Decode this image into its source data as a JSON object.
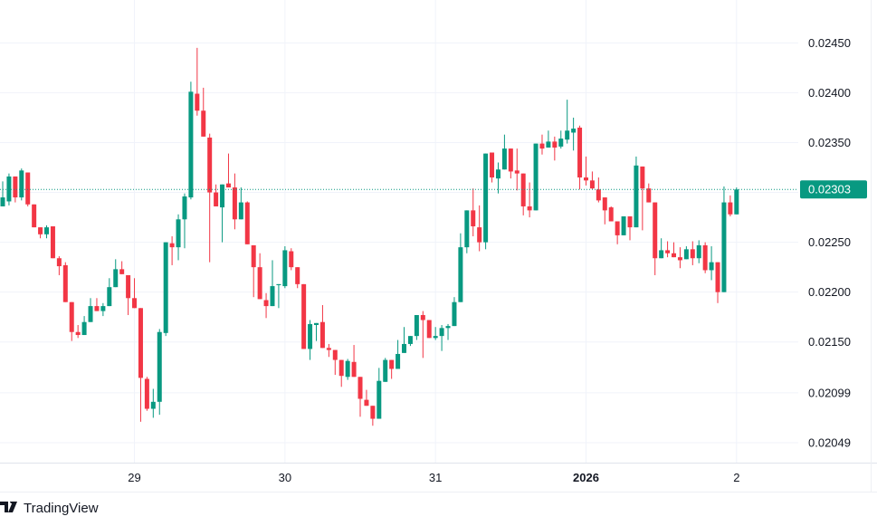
{
  "chart_data": {
    "type": "candlestick",
    "y_ticks": [
      "0.02450",
      "0.02400",
      "0.02350",
      "0.02250",
      "0.02200",
      "0.02150",
      "0.02099",
      "0.02049"
    ],
    "y_tick_values": [
      0.0245,
      0.024,
      0.0235,
      0.0225,
      0.022,
      0.0215,
      0.02099,
      0.02049
    ],
    "ylim": [
      0.02029,
      0.02493
    ],
    "x_ticks": [
      {
        "label": "29",
        "index": 21,
        "bold": false
      },
      {
        "label": "30",
        "index": 45,
        "bold": false
      },
      {
        "label": "31",
        "index": 69,
        "bold": false
      },
      {
        "label": "2026",
        "index": 93,
        "bold": true
      },
      {
        "label": "2",
        "index": 117,
        "bold": false
      }
    ],
    "current_price": {
      "label": "0.02303",
      "value": 0.02303
    },
    "grid": true,
    "colors": {
      "up": "#089981",
      "down": "#F23645",
      "grid": "#f0f3fa",
      "price_line": "#089981"
    },
    "ohlc_columns": [
      "open",
      "high",
      "low",
      "close"
    ],
    "candles": [
      [
        0.02286,
        0.02311,
        0.02286,
        0.02295
      ],
      [
        0.02291,
        0.02319,
        0.02287,
        0.02316
      ],
      [
        0.02316,
        0.02316,
        0.0229,
        0.02295
      ],
      [
        0.02295,
        0.02324,
        0.02292,
        0.02322
      ],
      [
        0.0232,
        0.0232,
        0.02286,
        0.02288
      ],
      [
        0.02288,
        0.02288,
        0.02265,
        0.02265
      ],
      [
        0.02265,
        0.02265,
        0.02254,
        0.02258
      ],
      [
        0.02258,
        0.02267,
        0.02254,
        0.02265
      ],
      [
        0.02266,
        0.02266,
        0.02234,
        0.02234
      ],
      [
        0.02234,
        0.02236,
        0.02217,
        0.02226
      ],
      [
        0.02227,
        0.0223,
        0.0219,
        0.0219
      ],
      [
        0.0219,
        0.0219,
        0.02151,
        0.0216
      ],
      [
        0.0216,
        0.02167,
        0.02154,
        0.02157
      ],
      [
        0.02157,
        0.02176,
        0.02157,
        0.0217
      ],
      [
        0.0217,
        0.02194,
        0.0217,
        0.02186
      ],
      [
        0.02186,
        0.02194,
        0.02181,
        0.02181
      ],
      [
        0.02181,
        0.02189,
        0.02176,
        0.02186
      ],
      [
        0.02186,
        0.02214,
        0.02186,
        0.02205
      ],
      [
        0.02205,
        0.02233,
        0.02205,
        0.02223
      ],
      [
        0.02223,
        0.02231,
        0.02218,
        0.02218
      ],
      [
        0.02217,
        0.02217,
        0.02177,
        0.02194
      ],
      [
        0.02194,
        0.02214,
        0.02184,
        0.02184
      ],
      [
        0.02184,
        0.02184,
        0.0207,
        0.02114
      ],
      [
        0.02113,
        0.02115,
        0.02081,
        0.02083
      ],
      [
        0.02083,
        0.02103,
        0.02074,
        0.0209
      ],
      [
        0.0209,
        0.02163,
        0.02077,
        0.0216
      ],
      [
        0.02159,
        0.0225,
        0.02156,
        0.0225
      ],
      [
        0.02249,
        0.02256,
        0.02227,
        0.02245
      ],
      [
        0.02245,
        0.02278,
        0.02232,
        0.02273
      ],
      [
        0.02273,
        0.02299,
        0.02244,
        0.02296
      ],
      [
        0.02295,
        0.02411,
        0.02293,
        0.02401
      ],
      [
        0.02399,
        0.02445,
        0.02377,
        0.02382
      ],
      [
        0.02382,
        0.02405,
        0.02356,
        0.02356
      ],
      [
        0.02355,
        0.02359,
        0.0223,
        0.023
      ],
      [
        0.023,
        0.02308,
        0.02286,
        0.02286
      ],
      [
        0.02285,
        0.02308,
        0.0225,
        0.02308
      ],
      [
        0.02309,
        0.02339,
        0.02305,
        0.02305
      ],
      [
        0.02305,
        0.02319,
        0.02263,
        0.02273
      ],
      [
        0.02273,
        0.02305,
        0.02273,
        0.0229
      ],
      [
        0.0229,
        0.02291,
        0.02248,
        0.02248
      ],
      [
        0.02247,
        0.02247,
        0.02195,
        0.02225
      ],
      [
        0.02225,
        0.02239,
        0.02193,
        0.02193
      ],
      [
        0.02192,
        0.02199,
        0.02174,
        0.02186
      ],
      [
        0.02186,
        0.02232,
        0.02186,
        0.02206
      ],
      [
        0.02207,
        0.02208,
        0.02184,
        0.02208
      ],
      [
        0.02206,
        0.02246,
        0.02204,
        0.02242
      ],
      [
        0.02241,
        0.02244,
        0.02222,
        0.02225
      ],
      [
        0.02225,
        0.02225,
        0.02204,
        0.02208
      ],
      [
        0.02208,
        0.02208,
        0.02143,
        0.02143
      ],
      [
        0.02143,
        0.02172,
        0.02132,
        0.02168
      ],
      [
        0.02167,
        0.02169,
        0.02151,
        0.02169
      ],
      [
        0.0217,
        0.02187,
        0.02144,
        0.02144
      ],
      [
        0.02144,
        0.02148,
        0.02135,
        0.02142
      ],
      [
        0.02142,
        0.02142,
        0.02117,
        0.02132
      ],
      [
        0.02132,
        0.02132,
        0.02105,
        0.02116
      ],
      [
        0.02115,
        0.02133,
        0.02112,
        0.02131
      ],
      [
        0.0213,
        0.02147,
        0.02115,
        0.02115
      ],
      [
        0.02115,
        0.02115,
        0.02075,
        0.02093
      ],
      [
        0.02092,
        0.02102,
        0.02086,
        0.02086
      ],
      [
        0.02086,
        0.02086,
        0.02066,
        0.02073
      ],
      [
        0.02073,
        0.02124,
        0.02073,
        0.02111
      ],
      [
        0.0211,
        0.02134,
        0.0211,
        0.02132
      ],
      [
        0.02132,
        0.02132,
        0.02113,
        0.02123
      ],
      [
        0.02123,
        0.02152,
        0.02123,
        0.02138
      ],
      [
        0.02139,
        0.02165,
        0.02139,
        0.02148
      ],
      [
        0.02148,
        0.02156,
        0.02146,
        0.02156
      ],
      [
        0.02156,
        0.02177,
        0.02152,
        0.02177
      ],
      [
        0.02177,
        0.02181,
        0.02134,
        0.02172
      ],
      [
        0.02172,
        0.02172,
        0.02154,
        0.02154
      ],
      [
        0.02154,
        0.02165,
        0.02152,
        0.02156
      ],
      [
        0.02156,
        0.02167,
        0.02141,
        0.02164
      ],
      [
        0.02164,
        0.02168,
        0.02152,
        0.02166
      ],
      [
        0.02166,
        0.02195,
        0.02166,
        0.0219
      ],
      [
        0.0219,
        0.02259,
        0.0219,
        0.02245
      ],
      [
        0.02245,
        0.02282,
        0.02239,
        0.02282
      ],
      [
        0.02282,
        0.02304,
        0.02256,
        0.02266
      ],
      [
        0.02265,
        0.02287,
        0.02241,
        0.0225
      ],
      [
        0.0225,
        0.02339,
        0.02243,
        0.02339
      ],
      [
        0.0234,
        0.0234,
        0.0231,
        0.02315
      ],
      [
        0.02314,
        0.0233,
        0.02299,
        0.02323
      ],
      [
        0.02323,
        0.02358,
        0.02323,
        0.02344
      ],
      [
        0.02344,
        0.02344,
        0.02314,
        0.02321
      ],
      [
        0.02322,
        0.02344,
        0.02302,
        0.02319
      ],
      [
        0.02319,
        0.02319,
        0.02277,
        0.02286
      ],
      [
        0.02286,
        0.0231,
        0.02275,
        0.02282
      ],
      [
        0.02282,
        0.02349,
        0.02282,
        0.02349
      ],
      [
        0.02349,
        0.02358,
        0.02338,
        0.02344
      ],
      [
        0.02345,
        0.02362,
        0.02345,
        0.02351
      ],
      [
        0.02351,
        0.02356,
        0.02332,
        0.02345
      ],
      [
        0.02346,
        0.02362,
        0.02344,
        0.02354
      ],
      [
        0.02353,
        0.02393,
        0.02349,
        0.02362
      ],
      [
        0.0236,
        0.02375,
        0.02342,
        0.02364
      ],
      [
        0.02365,
        0.02367,
        0.02303,
        0.02315
      ],
      [
        0.02315,
        0.02336,
        0.02307,
        0.02312
      ],
      [
        0.02312,
        0.02321,
        0.02303,
        0.02304
      ],
      [
        0.02303,
        0.02315,
        0.0229,
        0.02292
      ],
      [
        0.02295,
        0.02295,
        0.02268,
        0.02282
      ],
      [
        0.02285,
        0.02286,
        0.02271,
        0.02271
      ],
      [
        0.02271,
        0.02271,
        0.02248,
        0.02257
      ],
      [
        0.02257,
        0.02276,
        0.02257,
        0.02276
      ],
      [
        0.02276,
        0.02276,
        0.02252,
        0.02265
      ],
      [
        0.02265,
        0.02336,
        0.02265,
        0.02327
      ],
      [
        0.02326,
        0.02326,
        0.02262,
        0.02304
      ],
      [
        0.02304,
        0.02309,
        0.0229,
        0.0229
      ],
      [
        0.0229,
        0.0229,
        0.02217,
        0.02234
      ],
      [
        0.02234,
        0.02254,
        0.02234,
        0.02242
      ],
      [
        0.02242,
        0.02251,
        0.02235,
        0.02239
      ],
      [
        0.02239,
        0.0225,
        0.02235,
        0.02235
      ],
      [
        0.02235,
        0.02245,
        0.02224,
        0.02232
      ],
      [
        0.02233,
        0.02246,
        0.02233,
        0.02243
      ],
      [
        0.02243,
        0.02251,
        0.02227,
        0.02234
      ],
      [
        0.02234,
        0.02252,
        0.02229,
        0.02247
      ],
      [
        0.02247,
        0.0225,
        0.02219,
        0.02222
      ],
      [
        0.02222,
        0.02246,
        0.02212,
        0.0223
      ],
      [
        0.0223,
        0.0223,
        0.02189,
        0.022
      ],
      [
        0.022,
        0.02306,
        0.022,
        0.0229
      ],
      [
        0.0229,
        0.02297,
        0.02276,
        0.02278
      ],
      [
        0.02278,
        0.02305,
        0.02278,
        0.02303
      ]
    ]
  },
  "branding": {
    "logo_mark": "TV",
    "logo_text": "TradingView"
  }
}
